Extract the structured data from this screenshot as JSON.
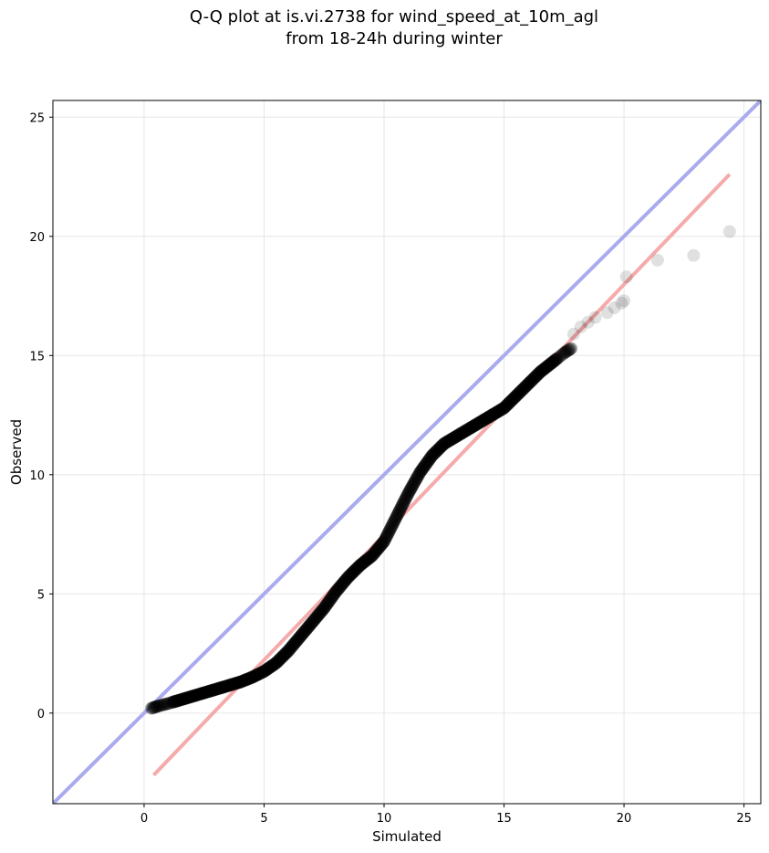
{
  "chart_data": {
    "type": "scatter",
    "title_lines": [
      "Q-Q plot at is.vi.2738 for wind_speed_at_10m_agl",
      "from 18-24h during winter"
    ],
    "xlabel": "Simulated",
    "ylabel": "Observed",
    "xlim": [
      -3.8,
      25.7
    ],
    "ylim": [
      -3.8,
      25.7
    ],
    "xticks": [
      0,
      5,
      10,
      15,
      20,
      25
    ],
    "yticks": [
      0,
      5,
      10,
      15,
      20,
      25
    ],
    "grid": true,
    "point_color": "#000000",
    "identity_line_color": "#aaaaee",
    "fit_line_color": "#f4a6a6",
    "identity_line": {
      "x": [
        -3.8,
        25.7
      ],
      "y": [
        -3.8,
        25.7
      ]
    },
    "fit_line": {
      "x": [
        0.4,
        24.4
      ],
      "y": [
        -2.6,
        22.6
      ]
    },
    "qq_curve": {
      "x": [
        0.3,
        0.6,
        1.0,
        1.5,
        2.0,
        2.5,
        3.0,
        3.5,
        4.0,
        4.5,
        5.0,
        5.5,
        6.0,
        6.5,
        7.0,
        7.5,
        8.0,
        8.5,
        9.0,
        9.5,
        10.0,
        10.5,
        11.0,
        11.5,
        12.0,
        12.5,
        13.0,
        13.5,
        14.0,
        14.5,
        15.0,
        15.5,
        16.0,
        16.5,
        17.0,
        17.5,
        17.8
      ],
      "y": [
        0.2,
        0.3,
        0.4,
        0.55,
        0.7,
        0.85,
        1.0,
        1.15,
        1.3,
        1.5,
        1.75,
        2.1,
        2.6,
        3.2,
        3.8,
        4.4,
        5.1,
        5.7,
        6.2,
        6.6,
        7.2,
        8.2,
        9.2,
        10.1,
        10.8,
        11.3,
        11.6,
        11.9,
        12.2,
        12.5,
        12.8,
        13.3,
        13.8,
        14.3,
        14.7,
        15.1,
        15.3
      ]
    },
    "tail_points": {
      "x": [
        17.9,
        18.2,
        18.5,
        18.8,
        19.3,
        19.6,
        19.9,
        20.0,
        20.1,
        21.4,
        22.9,
        24.4
      ],
      "y": [
        15.9,
        16.2,
        16.4,
        16.6,
        16.8,
        17.0,
        17.2,
        17.3,
        18.3,
        19.0,
        19.2,
        20.2
      ]
    }
  }
}
